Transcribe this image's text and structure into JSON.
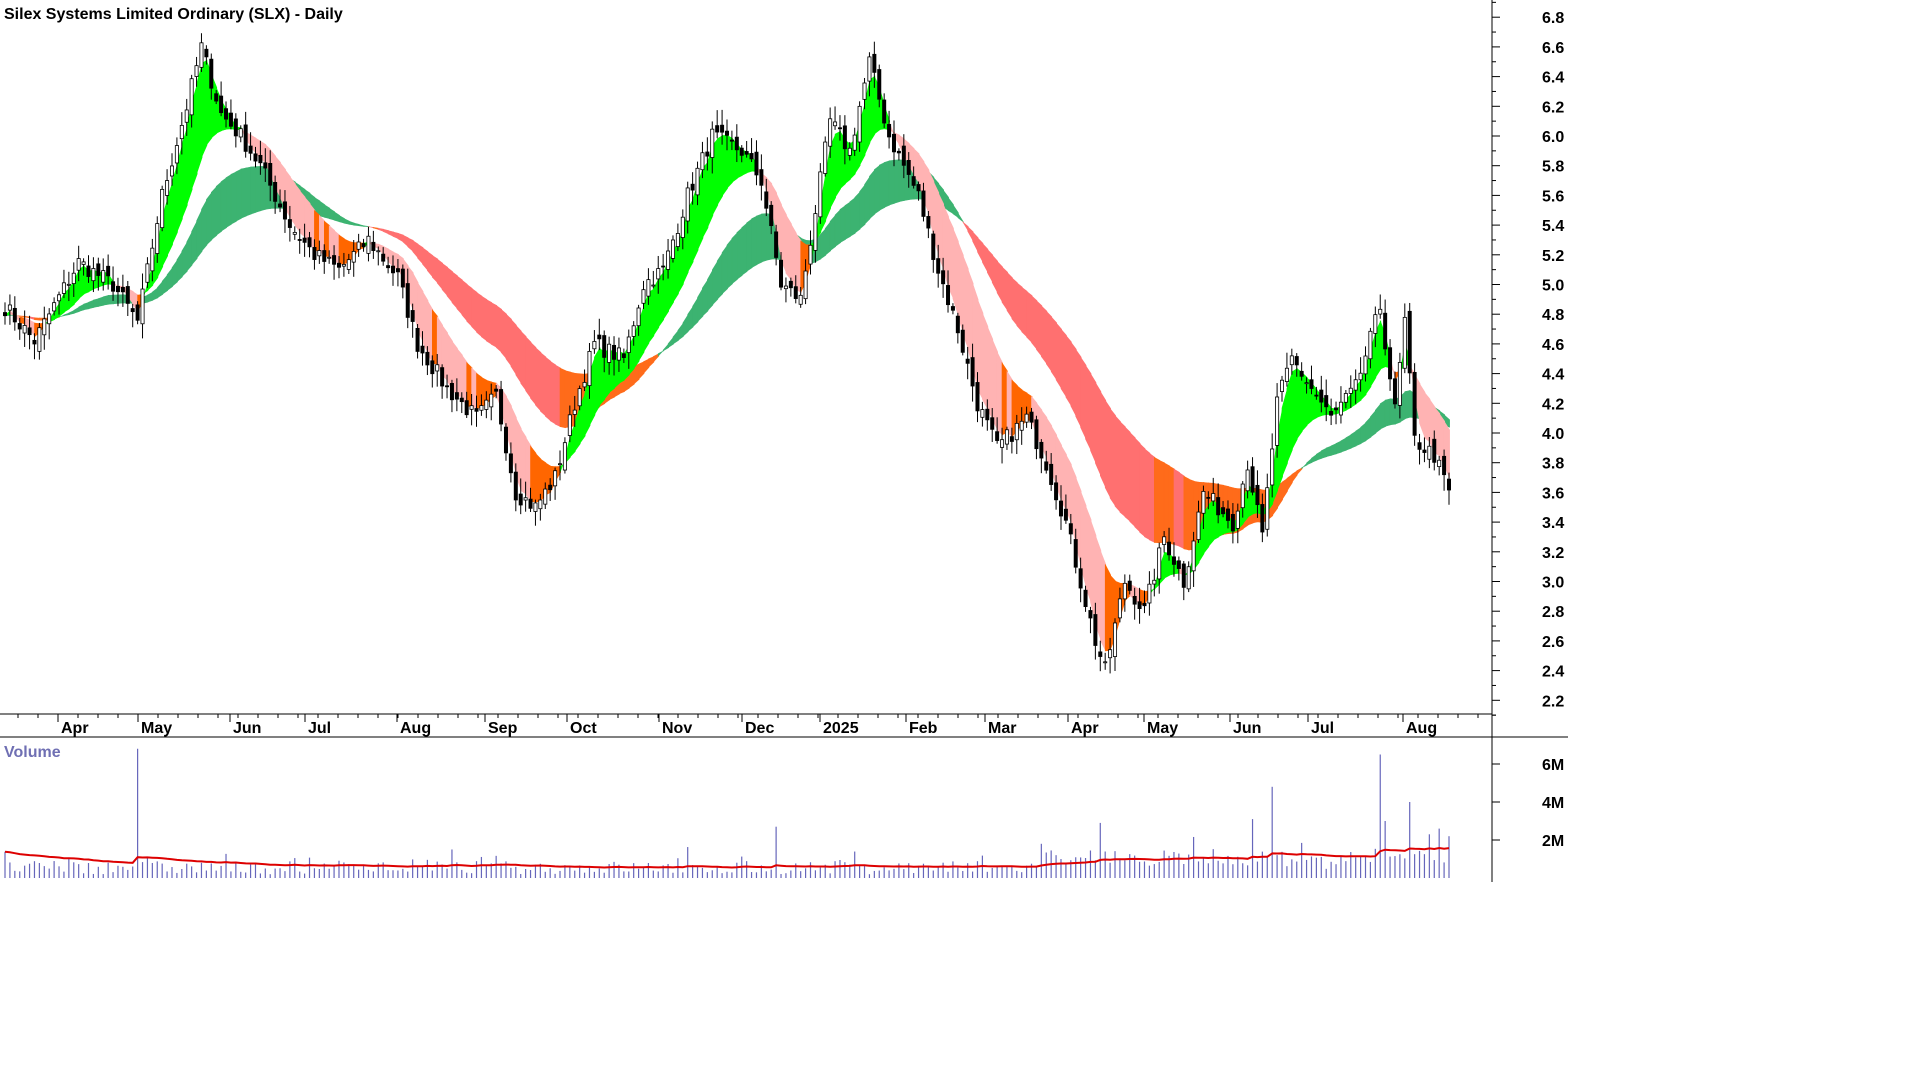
{
  "chart_data": {
    "type": "candlestick",
    "title": "Silex Systems Limited Ordinary (SLX) - Daily",
    "price_axis": {
      "ticks": [
        "2.2",
        "2.4",
        "2.6",
        "2.8",
        "3.0",
        "3.2",
        "3.4",
        "3.6",
        "3.8",
        "4.0",
        "4.2",
        "4.4",
        "4.6",
        "4.8",
        "5.0",
        "5.2",
        "5.4",
        "5.6",
        "5.8",
        "6.0",
        "6.2",
        "6.4",
        "6.6",
        "6.8"
      ],
      "range": [
        2.0,
        6.95
      ]
    },
    "date_axis": {
      "labels": [
        "Apr",
        "May",
        "Jun",
        "Jul",
        "Aug",
        "Sep",
        "Oct",
        "Nov",
        "Dec",
        "2025",
        "Feb",
        "Mar",
        "Apr",
        "May",
        "Jun",
        "Jul",
        "Aug"
      ]
    },
    "close_anchors": [
      {
        "day": 0,
        "close": 4.85
      },
      {
        "day": 6,
        "close": 4.62
      },
      {
        "day": 15,
        "close": 5.15
      },
      {
        "day": 22,
        "close": 5.0
      },
      {
        "day": 27,
        "close": 4.75
      },
      {
        "day": 32,
        "close": 5.6
      },
      {
        "day": 37,
        "close": 6.2
      },
      {
        "day": 40,
        "close": 6.6
      },
      {
        "day": 44,
        "close": 6.15
      },
      {
        "day": 48,
        "close": 6.0
      },
      {
        "day": 52,
        "close": 5.8
      },
      {
        "day": 58,
        "close": 5.4
      },
      {
        "day": 63,
        "close": 5.2
      },
      {
        "day": 68,
        "close": 5.1
      },
      {
        "day": 74,
        "close": 5.3
      },
      {
        "day": 80,
        "close": 5.05
      },
      {
        "day": 84,
        "close": 4.6
      },
      {
        "day": 90,
        "close": 4.3
      },
      {
        "day": 96,
        "close": 4.1
      },
      {
        "day": 100,
        "close": 4.25
      },
      {
        "day": 104,
        "close": 3.6
      },
      {
        "day": 108,
        "close": 3.5
      },
      {
        "day": 112,
        "close": 3.7
      },
      {
        "day": 116,
        "close": 4.2
      },
      {
        "day": 120,
        "close": 4.6
      },
      {
        "day": 126,
        "close": 4.5
      },
      {
        "day": 130,
        "close": 5.0
      },
      {
        "day": 134,
        "close": 5.1
      },
      {
        "day": 139,
        "close": 5.6
      },
      {
        "day": 144,
        "close": 6.0
      },
      {
        "day": 150,
        "close": 5.9
      },
      {
        "day": 154,
        "close": 5.7
      },
      {
        "day": 158,
        "close": 5.0
      },
      {
        "day": 162,
        "close": 4.9
      },
      {
        "day": 165,
        "close": 5.5
      },
      {
        "day": 168,
        "close": 6.1
      },
      {
        "day": 172,
        "close": 5.9
      },
      {
        "day": 176,
        "close": 6.5
      },
      {
        "day": 180,
        "close": 6.0
      },
      {
        "day": 186,
        "close": 5.6
      },
      {
        "day": 190,
        "close": 5.1
      },
      {
        "day": 194,
        "close": 4.7
      },
      {
        "day": 198,
        "close": 4.2
      },
      {
        "day": 202,
        "close": 3.9
      },
      {
        "day": 208,
        "close": 4.1
      },
      {
        "day": 212,
        "close": 3.8
      },
      {
        "day": 216,
        "close": 3.4
      },
      {
        "day": 219,
        "close": 3.0
      },
      {
        "day": 222,
        "close": 2.6
      },
      {
        "day": 224,
        "close": 2.4
      },
      {
        "day": 228,
        "close": 3.0
      },
      {
        "day": 232,
        "close": 2.8
      },
      {
        "day": 236,
        "close": 3.3
      },
      {
        "day": 240,
        "close": 3.0
      },
      {
        "day": 244,
        "close": 3.6
      },
      {
        "day": 250,
        "close": 3.4
      },
      {
        "day": 253,
        "close": 3.8
      },
      {
        "day": 256,
        "close": 3.3
      },
      {
        "day": 259,
        "close": 4.2
      },
      {
        "day": 262,
        "close": 4.5
      },
      {
        "day": 266,
        "close": 4.3
      },
      {
        "day": 270,
        "close": 4.1
      },
      {
        "day": 275,
        "close": 4.3
      },
      {
        "day": 280,
        "close": 4.85
      },
      {
        "day": 283,
        "close": 4.15
      },
      {
        "day": 285,
        "close": 4.75
      },
      {
        "day": 287,
        "close": 3.95
      },
      {
        "day": 291,
        "close": 3.85
      },
      {
        "day": 294,
        "close": 3.6
      }
    ],
    "ema_bands": [
      {
        "name": "short-term",
        "up_color": "#00ff00",
        "down_color": "#ff6600",
        "down_weak_color": "#ffb3b3"
      },
      {
        "name": "long-term",
        "up_color": "#3cb371",
        "down_color": "#ff6b1a",
        "down_weak_color": "#ff7070"
      }
    ],
    "volume": {
      "label": "Volume",
      "ticks": [
        "2M",
        "4M",
        "6M"
      ],
      "max": 7000000,
      "bar_color": "#6666bb",
      "average_color": "#dd0000",
      "spikes": [
        {
          "day": 27,
          "value": 6800000
        },
        {
          "day": 157,
          "value": 2700000
        },
        {
          "day": 211,
          "value": 1800000
        },
        {
          "day": 223,
          "value": 2900000
        },
        {
          "day": 254,
          "value": 3100000
        },
        {
          "day": 258,
          "value": 4800000
        },
        {
          "day": 280,
          "value": 6500000
        },
        {
          "day": 281,
          "value": 3000000
        },
        {
          "day": 286,
          "value": 4000000
        },
        {
          "day": 290,
          "value": 2300000
        },
        {
          "day": 292,
          "value": 2600000
        },
        {
          "day": 294,
          "value": 2200000
        }
      ]
    }
  }
}
